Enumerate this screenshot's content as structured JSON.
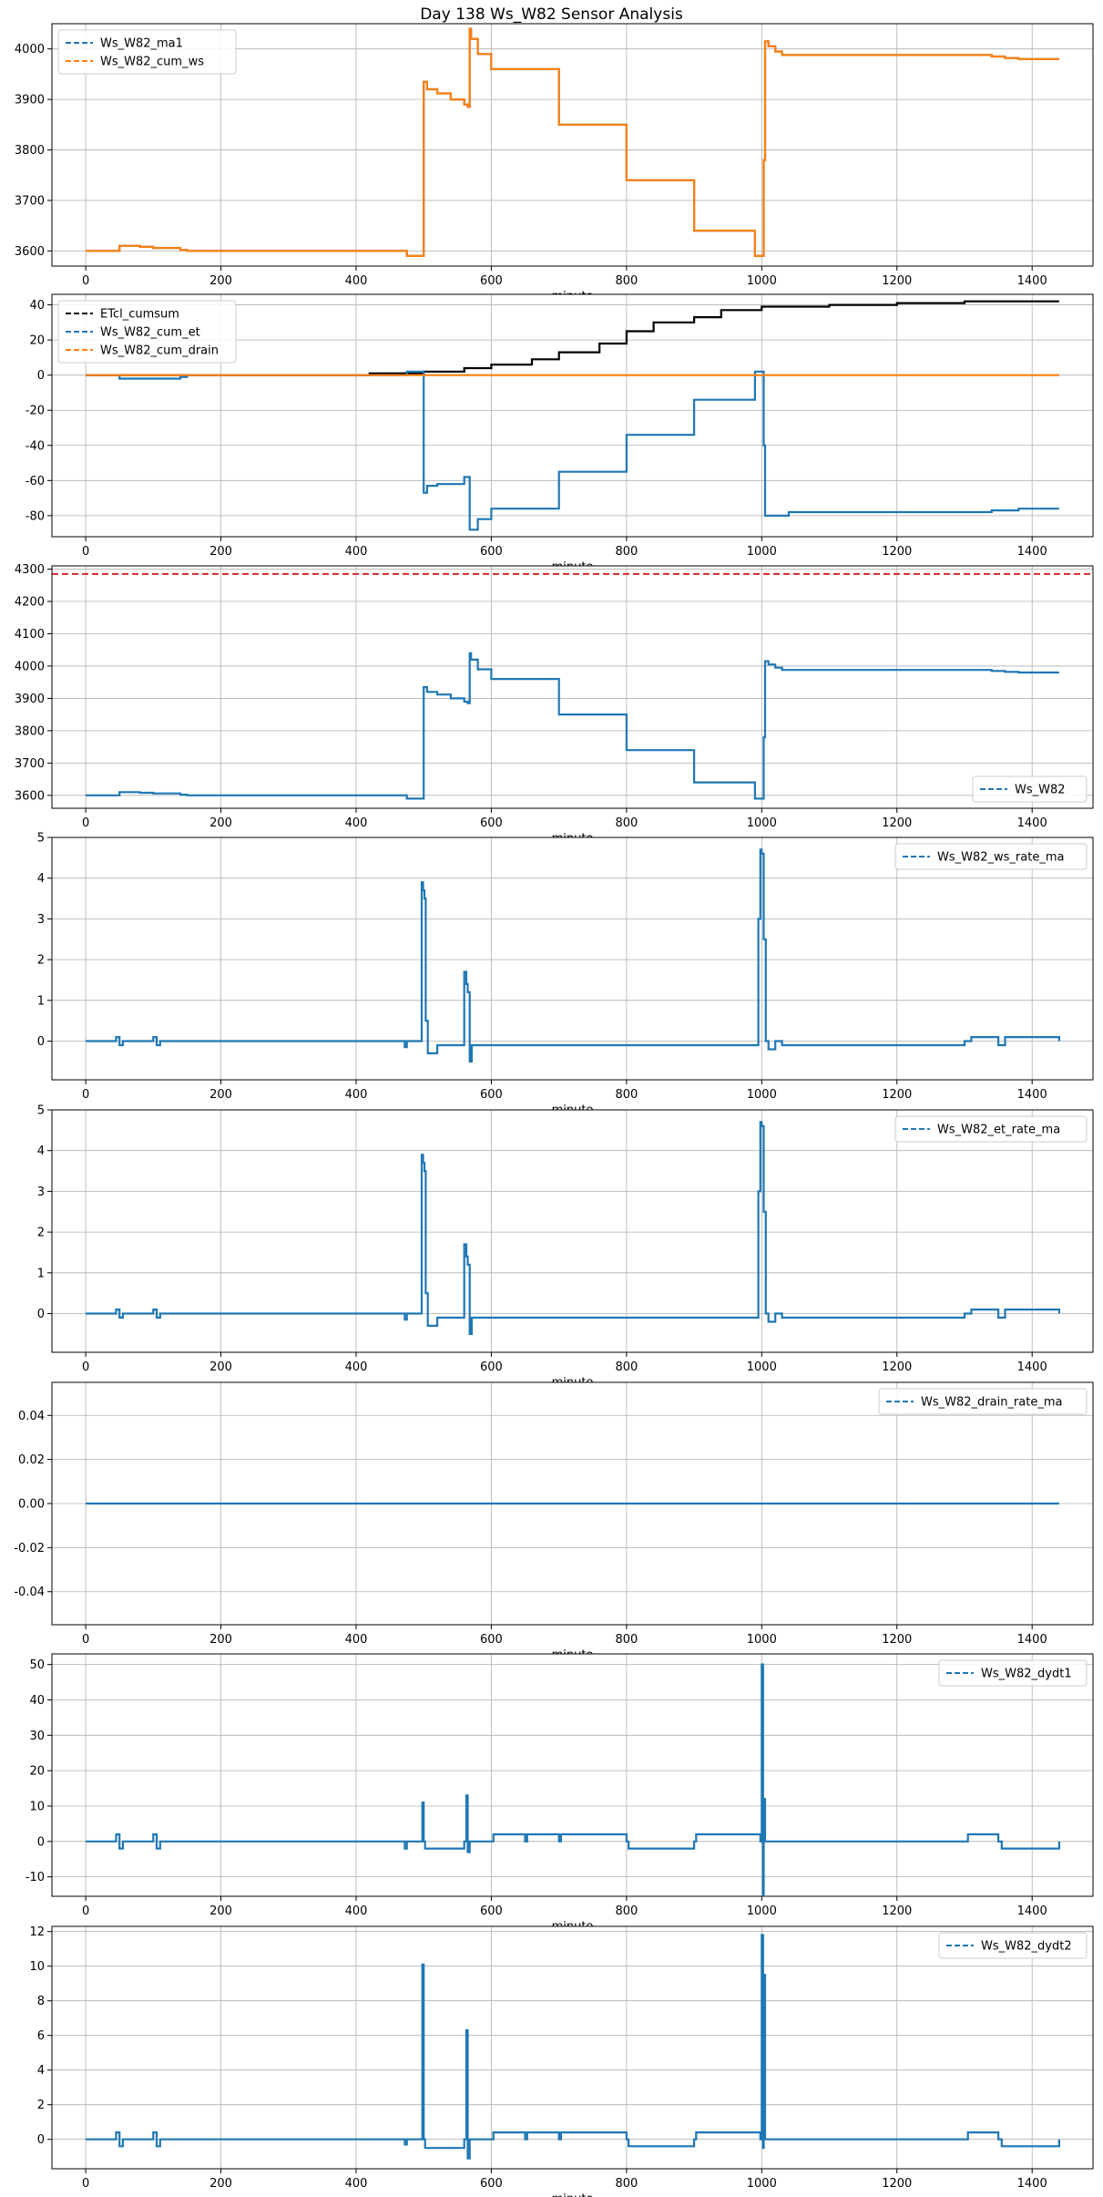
{
  "figure": {
    "title": "Day 138 Ws_W82 Sensor Analysis"
  },
  "chart_data": [
    {
      "type": "line",
      "xlabel": "minute",
      "xlim": [
        -50,
        1490
      ],
      "ylim": [
        3570,
        4050
      ],
      "xticks": [
        0,
        200,
        400,
        600,
        800,
        1000,
        1200,
        1400
      ],
      "yticks": [
        3600,
        3700,
        3800,
        3900,
        4000
      ],
      "grid": true,
      "legend_position": "upper-left",
      "series": [
        {
          "name": "Ws_W82_ma1",
          "color": "#1f77b4",
          "dashed": true,
          "x": [
            0,
            40,
            50,
            80,
            100,
            140,
            150,
            470,
            475,
            495,
            500,
            505,
            520,
            540,
            560,
            565,
            568,
            570,
            580,
            600,
            700,
            800,
            900,
            990,
            1000,
            1003,
            1005,
            1010,
            1020,
            1030,
            1040,
            1200,
            1300,
            1340,
            1360,
            1380,
            1440
          ],
          "y": [
            3600,
            3600,
            3610,
            3608,
            3606,
            3602,
            3600,
            3600,
            3590,
            3590,
            3935,
            3920,
            3912,
            3900,
            3890,
            3885,
            4040,
            4020,
            3990,
            3960,
            3850,
            3740,
            3640,
            3590,
            3590,
            3780,
            4015,
            4005,
            3995,
            3988,
            3988,
            3988,
            3988,
            3985,
            3982,
            3980,
            3980
          ]
        },
        {
          "name": "Ws_W82_cum_ws",
          "color": "#ff7f0e",
          "dashed": true,
          "x": [
            0,
            40,
            50,
            80,
            100,
            140,
            150,
            470,
            475,
            495,
            500,
            505,
            520,
            540,
            560,
            565,
            568,
            570,
            580,
            600,
            700,
            800,
            900,
            990,
            1000,
            1003,
            1005,
            1010,
            1020,
            1030,
            1040,
            1200,
            1300,
            1340,
            1360,
            1380,
            1440
          ],
          "y": [
            3600,
            3600,
            3610,
            3608,
            3606,
            3602,
            3600,
            3600,
            3590,
            3590,
            3935,
            3920,
            3912,
            3900,
            3890,
            3885,
            4040,
            4020,
            3990,
            3960,
            3850,
            3740,
            3640,
            3590,
            3590,
            3780,
            4015,
            4005,
            3995,
            3988,
            3988,
            3988,
            3988,
            3985,
            3982,
            3980,
            3980
          ]
        }
      ]
    },
    {
      "type": "line",
      "xlabel": "minute",
      "xlim": [
        -50,
        1490
      ],
      "ylim": [
        -92,
        46
      ],
      "xticks": [
        0,
        200,
        400,
        600,
        800,
        1000,
        1200,
        1400
      ],
      "yticks": [
        -80,
        -60,
        -40,
        -20,
        0,
        20,
        40
      ],
      "grid": true,
      "legend_position": "upper-left",
      "series": [
        {
          "name": "ETcl_cumsum",
          "color": "#000000",
          "dashed": true,
          "x": [
            0,
            400,
            420,
            500,
            560,
            600,
            660,
            700,
            760,
            800,
            840,
            900,
            940,
            1000,
            1100,
            1200,
            1300,
            1440
          ],
          "y": [
            0,
            0,
            1,
            2,
            4,
            6,
            9,
            13,
            18,
            25,
            30,
            33,
            37,
            39,
            40,
            41,
            42,
            42
          ]
        },
        {
          "name": "Ws_W82_cum_et",
          "color": "#1f77b4",
          "dashed": true,
          "x": [
            0,
            40,
            50,
            100,
            140,
            150,
            470,
            475,
            495,
            500,
            505,
            520,
            560,
            565,
            568,
            580,
            600,
            700,
            800,
            900,
            990,
            1000,
            1003,
            1005,
            1010,
            1040,
            1300,
            1340,
            1380,
            1440
          ],
          "y": [
            0,
            0,
            -2,
            -2,
            -1,
            0,
            0,
            2,
            2,
            -67,
            -63,
            -62,
            -58,
            -58,
            -88,
            -82,
            -76,
            -55,
            -34,
            -14,
            2,
            2,
            -40,
            -80,
            -80,
            -78,
            -78,
            -77,
            -76,
            -76
          ]
        },
        {
          "name": "Ws_W82_cum_drain",
          "color": "#ff7f0e",
          "dashed": true,
          "x": [
            0,
            1440
          ],
          "y": [
            0,
            0
          ]
        }
      ]
    },
    {
      "type": "line",
      "xlabel": "minute",
      "xlim": [
        -50,
        1490
      ],
      "ylim": [
        3560,
        4310
      ],
      "xticks": [
        0,
        200,
        400,
        600,
        800,
        1000,
        1200,
        1400
      ],
      "yticks": [
        3600,
        3700,
        3800,
        3900,
        4000,
        4100,
        4200,
        4300
      ],
      "grid": true,
      "legend_position": "lower-right",
      "hline": {
        "y": 4285,
        "color": "#d62728",
        "dashed": true
      },
      "series": [
        {
          "name": "Ws_W82",
          "color": "#1f77b4",
          "dashed": true,
          "x": [
            0,
            40,
            50,
            80,
            100,
            140,
            150,
            470,
            475,
            495,
            500,
            505,
            520,
            540,
            560,
            565,
            568,
            570,
            580,
            600,
            700,
            800,
            900,
            990,
            1000,
            1003,
            1005,
            1010,
            1020,
            1030,
            1040,
            1200,
            1300,
            1340,
            1360,
            1380,
            1440
          ],
          "y": [
            3600,
            3600,
            3610,
            3608,
            3606,
            3602,
            3600,
            3600,
            3590,
            3590,
            3935,
            3920,
            3912,
            3900,
            3890,
            3885,
            4040,
            4020,
            3990,
            3960,
            3850,
            3740,
            3640,
            3590,
            3590,
            3780,
            4015,
            4005,
            3995,
            3988,
            3988,
            3988,
            3988,
            3985,
            3982,
            3980,
            3980
          ]
        }
      ]
    },
    {
      "type": "line",
      "xlabel": "minute",
      "xlim": [
        -50,
        1490
      ],
      "ylim": [
        -0.95,
        5
      ],
      "xticks": [
        0,
        200,
        400,
        600,
        800,
        1000,
        1200,
        1400
      ],
      "yticks": [
        0,
        1,
        2,
        3,
        4,
        5
      ],
      "grid": true,
      "legend_position": "upper-right",
      "series": [
        {
          "name": "Ws_W82_ws_rate_ma",
          "color": "#1f77b4",
          "dashed": true,
          "x": [
            0,
            40,
            45,
            50,
            55,
            95,
            100,
            105,
            110,
            140,
            470,
            472,
            475,
            495,
            497,
            499,
            501,
            503,
            506,
            520,
            555,
            560,
            563,
            565,
            568,
            571,
            600,
            650,
            700,
            800,
            900,
            990,
            995,
            998,
            1000,
            1003,
            1006,
            1010,
            1020,
            1030,
            1300,
            1310,
            1350,
            1360,
            1440
          ],
          "y": [
            0,
            0,
            0.1,
            -0.1,
            0,
            0,
            0.1,
            -0.1,
            0,
            0,
            0,
            -0.15,
            0,
            0,
            3.9,
            3.7,
            3.5,
            0.5,
            -0.3,
            -0.1,
            -0.1,
            1.7,
            1.4,
            1.2,
            -0.5,
            -0.1,
            -0.1,
            -0.1,
            -0.1,
            -0.1,
            -0.1,
            -0.1,
            3.0,
            4.7,
            4.6,
            2.5,
            0,
            -0.2,
            0,
            -0.1,
            0,
            0.1,
            -0.1,
            0.1,
            0
          ]
        }
      ]
    },
    {
      "type": "line",
      "xlabel": "minute",
      "xlim": [
        -50,
        1490
      ],
      "ylim": [
        -0.95,
        5
      ],
      "xticks": [
        0,
        200,
        400,
        600,
        800,
        1000,
        1200,
        1400
      ],
      "yticks": [
        0,
        1,
        2,
        3,
        4,
        5
      ],
      "grid": true,
      "legend_position": "upper-right",
      "series": [
        {
          "name": "Ws_W82_et_rate_ma",
          "color": "#1f77b4",
          "dashed": true,
          "x": [
            0,
            40,
            45,
            50,
            55,
            95,
            100,
            105,
            110,
            140,
            470,
            472,
            475,
            495,
            497,
            499,
            501,
            503,
            506,
            520,
            555,
            560,
            563,
            565,
            568,
            571,
            600,
            650,
            700,
            800,
            900,
            990,
            995,
            998,
            1000,
            1003,
            1006,
            1010,
            1020,
            1030,
            1300,
            1310,
            1350,
            1360,
            1440
          ],
          "y": [
            0,
            0,
            0.1,
            -0.1,
            0,
            0,
            0.1,
            -0.1,
            0,
            0,
            0,
            -0.15,
            0,
            0,
            3.9,
            3.7,
            3.5,
            0.5,
            -0.3,
            -0.1,
            -0.1,
            1.7,
            1.4,
            1.2,
            -0.5,
            -0.1,
            -0.1,
            -0.1,
            -0.1,
            -0.1,
            -0.1,
            -0.1,
            3.0,
            4.7,
            4.6,
            2.5,
            0,
            -0.2,
            0,
            -0.1,
            0,
            0.1,
            -0.1,
            0.1,
            0
          ]
        }
      ]
    },
    {
      "type": "line",
      "xlabel": "minute",
      "xlim": [
        -50,
        1490
      ],
      "ylim": [
        -0.055,
        0.055
      ],
      "xticks": [
        0,
        200,
        400,
        600,
        800,
        1000,
        1200,
        1400
      ],
      "yticks": [
        -0.04,
        -0.02,
        0.0,
        0.02,
        0.04
      ],
      "ytick_labels": [
        "-0.04",
        "-0.02",
        "0.00",
        "0.02",
        "0.04"
      ],
      "grid": true,
      "legend_position": "upper-right",
      "series": [
        {
          "name": "Ws_W82_drain_rate_ma",
          "color": "#1f77b4",
          "dashed": true,
          "x": [
            0,
            1440
          ],
          "y": [
            0,
            0
          ]
        }
      ]
    },
    {
      "type": "line",
      "xlabel": "minute",
      "xlim": [
        -50,
        1490
      ],
      "ylim": [
        -15.5,
        53
      ],
      "xticks": [
        0,
        200,
        400,
        600,
        800,
        1000,
        1200,
        1400
      ],
      "yticks": [
        -10,
        0,
        10,
        20,
        30,
        40,
        50
      ],
      "grid": true,
      "legend_position": "upper-right",
      "series": [
        {
          "name": "Ws_W82_dydt1",
          "color": "#1f77b4",
          "dashed": true,
          "x": [
            0,
            40,
            45,
            50,
            55,
            95,
            100,
            105,
            110,
            140,
            470,
            472,
            475,
            497,
            498,
            500,
            502,
            560,
            563,
            565,
            568,
            600,
            603,
            650,
            653,
            700,
            703,
            800,
            803,
            900,
            903,
            998,
            1000,
            1002,
            1003,
            1005,
            1008,
            1300,
            1305,
            1350,
            1355,
            1440
          ],
          "y": [
            0,
            0,
            2,
            -2,
            0,
            0,
            2,
            -2,
            0,
            0,
            0,
            -2,
            0,
            0,
            11,
            0,
            -2,
            0,
            13,
            -3,
            0,
            0,
            2,
            0,
            2,
            0,
            2,
            0,
            -2,
            0,
            2,
            0,
            50,
            -15,
            12,
            0,
            0,
            0,
            2,
            0,
            -2,
            0
          ]
        }
      ]
    },
    {
      "type": "line",
      "xlabel": "minute",
      "xlim": [
        -50,
        1490
      ],
      "ylim": [
        -1.7,
        12.3
      ],
      "xticks": [
        0,
        200,
        400,
        600,
        800,
        1000,
        1200,
        1400
      ],
      "yticks": [
        0,
        2,
        4,
        6,
        8,
        10,
        12
      ],
      "grid": true,
      "legend_position": "upper-right",
      "series": [
        {
          "name": "Ws_W82_dydt2",
          "color": "#1f77b4",
          "dashed": true,
          "x": [
            0,
            40,
            45,
            50,
            55,
            95,
            100,
            105,
            110,
            140,
            470,
            472,
            475,
            497,
            498,
            500,
            502,
            560,
            563,
            565,
            568,
            600,
            603,
            650,
            653,
            700,
            703,
            800,
            803,
            900,
            903,
            998,
            1000,
            1002,
            1003,
            1005,
            1008,
            1300,
            1305,
            1350,
            1355,
            1440
          ],
          "y": [
            0,
            0,
            0.4,
            -0.4,
            0,
            0,
            0.4,
            -0.4,
            0,
            0,
            0,
            -0.3,
            0,
            0,
            10.1,
            0,
            -0.5,
            0,
            6.3,
            -1.1,
            0,
            0,
            0.4,
            0,
            0.4,
            0,
            0.4,
            0,
            -0.4,
            0,
            0.4,
            0,
            11.8,
            -0.5,
            9.5,
            0,
            0,
            0,
            0.4,
            0,
            -0.4,
            0
          ]
        }
      ]
    }
  ]
}
